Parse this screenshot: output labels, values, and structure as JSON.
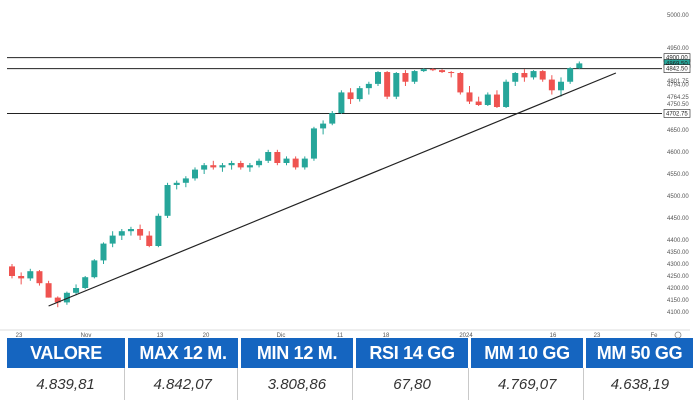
{
  "chart_data": {
    "type": "candlestick",
    "y_ticks": [
      "5000.00",
      "4950.00",
      "4820.00",
      "4801.75",
      "4794.00",
      "4764.25",
      "4750.50",
      "4700.00",
      "4650.00",
      "4600.00",
      "4550.00",
      "4500.00",
      "4450.00",
      "4400.00",
      "4350.00",
      "4300.00",
      "4250.00",
      "4200.00",
      "4150.00",
      "4100.00"
    ],
    "x_ticks": [
      "23",
      "Nov",
      "13",
      "20",
      "Dic",
      "11",
      "18",
      "2024",
      "16",
      "23",
      "Fe"
    ],
    "hlines": [
      4900,
      4842.5,
      4702.75
    ],
    "price_tags": [
      {
        "label": "4900.00",
        "value": 4900,
        "color": "#ffffff"
      },
      {
        "label": "4869.50",
        "value": 4869.5,
        "color": "#26a69a"
      },
      {
        "label": "4842.50",
        "value": 4842.5,
        "color": "#ffffff"
      },
      {
        "label": "4702.75",
        "value": 4702.75,
        "color": "#ffffff"
      }
    ],
    "trendline": {
      "start": [
        4,
        4125
      ],
      "end": [
        66,
        4820
      ]
    },
    "colors": {
      "up": "#26a69a",
      "down": "#ef5350",
      "line": "#222222"
    },
    "candles": [
      [
        4290,
        4300,
        4240,
        4250
      ],
      [
        4250,
        4265,
        4215,
        4240
      ],
      [
        4240,
        4280,
        4230,
        4270
      ],
      [
        4270,
        4275,
        4210,
        4220
      ],
      [
        4220,
        4230,
        4160,
        4160
      ],
      [
        4160,
        4165,
        4120,
        4140
      ],
      [
        4140,
        4185,
        4130,
        4180
      ],
      [
        4180,
        4215,
        4170,
        4200
      ],
      [
        4200,
        4250,
        4195,
        4245
      ],
      [
        4245,
        4320,
        4240,
        4315
      ],
      [
        4315,
        4390,
        4300,
        4385
      ],
      [
        4385,
        4420,
        4370,
        4410
      ],
      [
        4410,
        4425,
        4400,
        4420
      ],
      [
        4420,
        4430,
        4410,
        4425
      ],
      [
        4425,
        4435,
        4400,
        4410
      ],
      [
        4410,
        4420,
        4370,
        4375
      ],
      [
        4375,
        4460,
        4370,
        4455
      ],
      [
        4455,
        4530,
        4450,
        4525
      ],
      [
        4525,
        4535,
        4515,
        4530
      ],
      [
        4530,
        4545,
        4520,
        4540
      ],
      [
        4540,
        4565,
        4535,
        4560
      ],
      [
        4560,
        4575,
        4550,
        4570
      ],
      [
        4570,
        4580,
        4560,
        4565
      ],
      [
        4565,
        4575,
        4555,
        4570
      ],
      [
        4570,
        4580,
        4560,
        4575
      ],
      [
        4575,
        4580,
        4560,
        4565
      ],
      [
        4565,
        4575,
        4555,
        4570
      ],
      [
        4570,
        4585,
        4565,
        4580
      ],
      [
        4580,
        4605,
        4575,
        4600
      ],
      [
        4600,
        4605,
        4570,
        4575
      ],
      [
        4575,
        4590,
        4570,
        4585
      ],
      [
        4585,
        4590,
        4560,
        4565
      ],
      [
        4565,
        4590,
        4560,
        4585
      ],
      [
        4585,
        4660,
        4580,
        4655
      ],
      [
        4655,
        4680,
        4640,
        4670
      ],
      [
        4670,
        4715,
        4665,
        4705
      ],
      [
        4705,
        4780,
        4700,
        4775
      ],
      [
        4775,
        4785,
        4750,
        4760
      ],
      [
        4760,
        4790,
        4755,
        4785
      ],
      [
        4785,
        4800,
        4770,
        4795
      ],
      [
        4795,
        4830,
        4790,
        4825
      ],
      [
        4825,
        4830,
        4760,
        4765
      ],
      [
        4765,
        4825,
        4760,
        4820
      ],
      [
        4820,
        4835,
        4790,
        4800
      ],
      [
        4800,
        4835,
        4795,
        4830
      ],
      [
        4830,
        4845,
        4825,
        4840
      ],
      [
        4840,
        4845,
        4830,
        4835
      ],
      [
        4835,
        4840,
        4820,
        4825
      ],
      [
        4825,
        4830,
        4810,
        4820
      ],
      [
        4820,
        4825,
        4770,
        4775
      ],
      [
        4775,
        4790,
        4750,
        4755
      ],
      [
        4755,
        4765,
        4740,
        4745
      ],
      [
        4745,
        4775,
        4740,
        4770
      ],
      [
        4770,
        4780,
        4730,
        4735
      ],
      [
        4735,
        4805,
        4730,
        4800
      ],
      [
        4800,
        4825,
        4790,
        4820
      ],
      [
        4820,
        4840,
        4800,
        4810
      ],
      [
        4810,
        4835,
        4805,
        4830
      ],
      [
        4830,
        4835,
        4800,
        4805
      ],
      [
        4805,
        4815,
        4770,
        4780
      ],
      [
        4780,
        4810,
        4765,
        4800
      ],
      [
        4800,
        4850,
        4795,
        4845
      ],
      [
        4845,
        4880,
        4840,
        4870
      ]
    ]
  },
  "stats": {
    "headers": [
      "VALORE",
      "MAX 12 M.",
      "MIN 12 M.",
      "RSI 14 GG",
      "MM 10 GG",
      "MM 50 GG"
    ],
    "values": [
      "4.839,81",
      "4.842,07",
      "3.808,86",
      "67,80",
      "4.769,07",
      "4.638,19"
    ]
  }
}
